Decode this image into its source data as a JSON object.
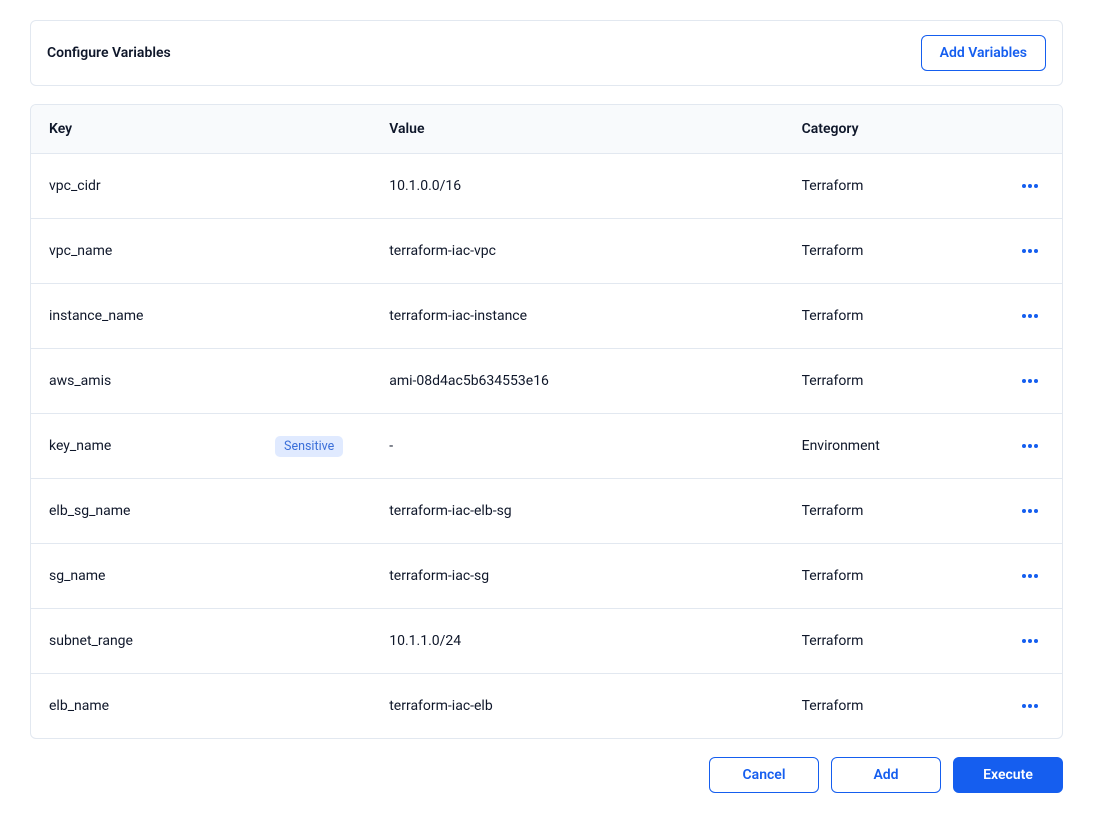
{
  "colors": {
    "primary": "#155eef",
    "border": "#e2e8f0",
    "header_bg": "#f8fafc",
    "badge_bg": "#e0eaff",
    "badge_text": "#3b6fd9",
    "text": "#0f172a"
  },
  "header": {
    "title": "Configure Variables",
    "add_button": "Add Variables"
  },
  "table": {
    "columns": {
      "key": "Key",
      "value": "Value",
      "category": "Category"
    },
    "rows": [
      {
        "key": "vpc_cidr",
        "value": "10.1.0.0/16",
        "category": "Terraform",
        "sensitive": false
      },
      {
        "key": "vpc_name",
        "value": "terraform-iac-vpc",
        "category": "Terraform",
        "sensitive": false
      },
      {
        "key": "instance_name",
        "value": "terraform-iac-instance",
        "category": "Terraform",
        "sensitive": false
      },
      {
        "key": "aws_amis",
        "value": "ami-08d4ac5b634553e16",
        "category": "Terraform",
        "sensitive": false
      },
      {
        "key": "key_name",
        "value": "-",
        "category": "Environment",
        "sensitive": true
      },
      {
        "key": "elb_sg_name",
        "value": "terraform-iac-elb-sg",
        "category": "Terraform",
        "sensitive": false
      },
      {
        "key": "sg_name",
        "value": "terraform-iac-sg",
        "category": "Terraform",
        "sensitive": false
      },
      {
        "key": "subnet_range",
        "value": "10.1.1.0/24",
        "category": "Terraform",
        "sensitive": false
      },
      {
        "key": "elb_name",
        "value": "terraform-iac-elb",
        "category": "Terraform",
        "sensitive": false
      }
    ],
    "sensitive_badge": "Sensitive"
  },
  "footer": {
    "cancel": "Cancel",
    "add": "Add",
    "execute": "Execute"
  }
}
